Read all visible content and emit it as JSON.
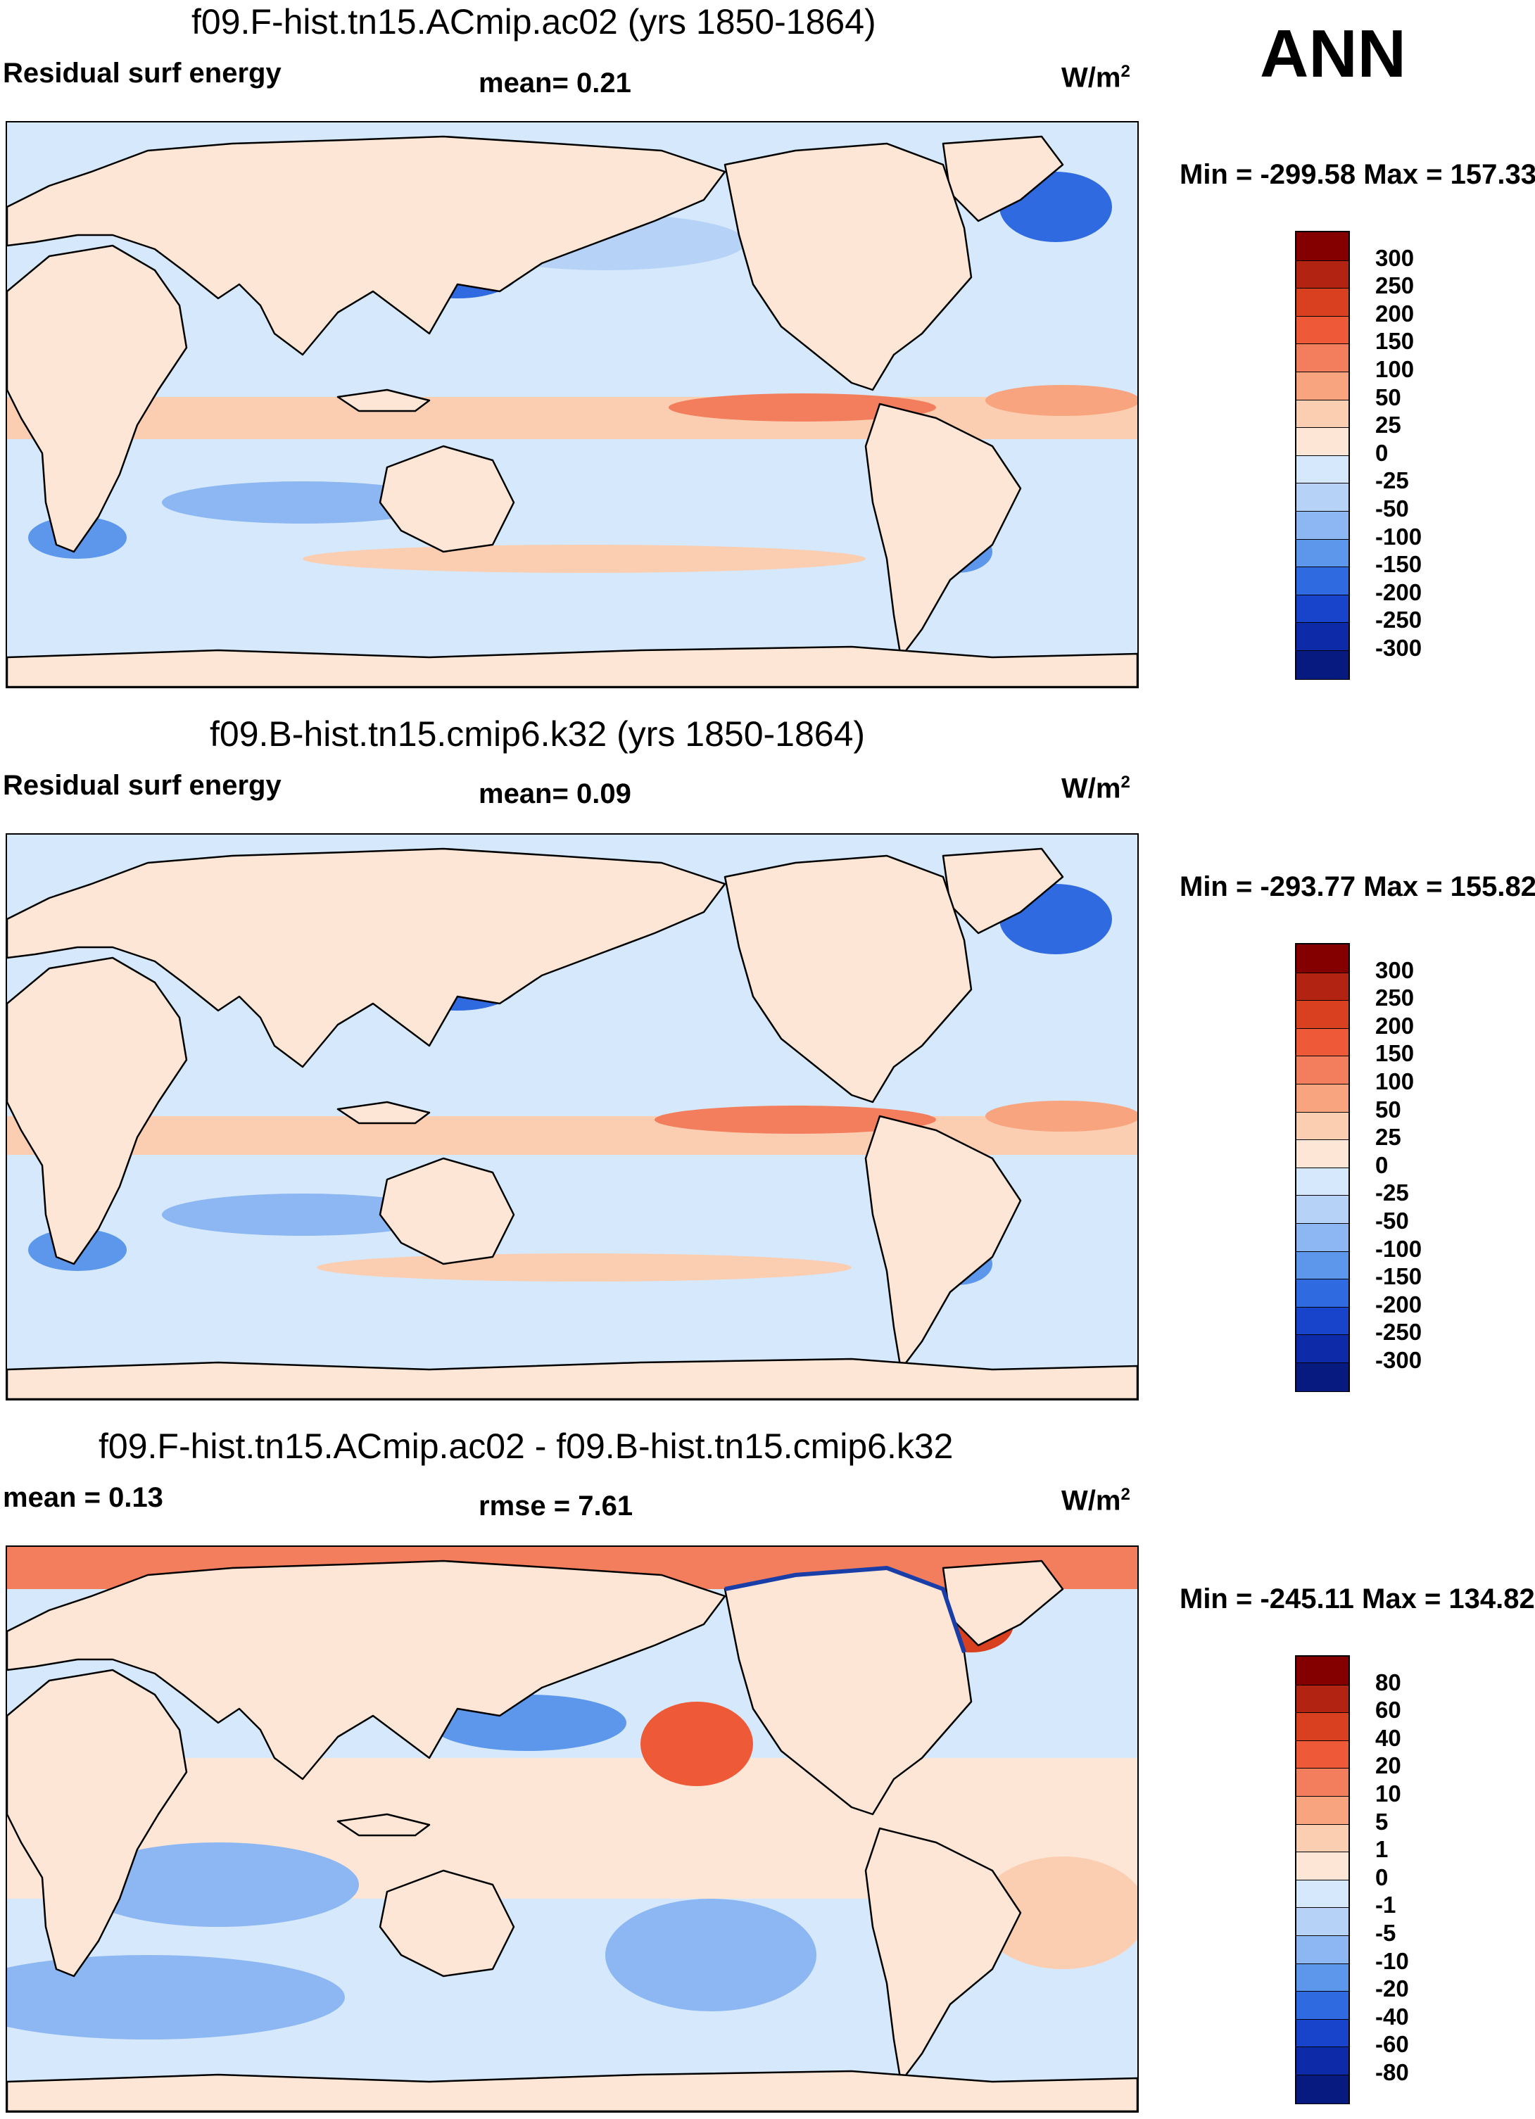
{
  "season": "ANN",
  "colors": {
    "pos_scale": [
      "#fde6d6",
      "#fbcdb1",
      "#f7a47f",
      "#f37e5d",
      "#ee5a38",
      "#d9401f",
      "#b22311",
      "#840000"
    ],
    "neg_scale": [
      "#d6e8fb",
      "#b6d2f6",
      "#8db7f2",
      "#5c97ec",
      "#2f6ae0",
      "#1844cc",
      "#0d2aa8",
      "#061a80"
    ],
    "land": "#fde6d6",
    "coast": "#000000",
    "ocean": "#d6e8fb"
  },
  "panels": [
    {
      "title": "f09.F-hist.tn15.ACmip.ac02 (yrs 1850-1864)",
      "left_label": "Residual surf energy",
      "mid_label": "mean=   0.21",
      "units": "W/m",
      "units_sup": "2",
      "minmax": "Min = -299.58 Max = 157.33",
      "colorbar_labels": [
        "300",
        "250",
        "200",
        "150",
        "100",
        "50",
        "25",
        "0",
        "-25",
        "-50",
        "-100",
        "-150",
        "-200",
        "-250",
        "-300"
      ]
    },
    {
      "title": "f09.B-hist.tn15.cmip6.k32 (yrs 1850-1864)",
      "left_label": "Residual surf energy",
      "mid_label": "mean=   0.09",
      "units": "W/m",
      "units_sup": "2",
      "minmax": "Min = -293.77 Max = 155.82",
      "colorbar_labels": [
        "300",
        "250",
        "200",
        "150",
        "100",
        "50",
        "25",
        "0",
        "-25",
        "-50",
        "-100",
        "-150",
        "-200",
        "-250",
        "-300"
      ]
    },
    {
      "title": "f09.F-hist.tn15.ACmip.ac02 - f09.B-hist.tn15.cmip6.k32",
      "left_label": "mean =   0.13",
      "mid_label": "rmse =   7.61",
      "units": "W/m",
      "units_sup": "2",
      "minmax": "Min = -245.11 Max = 134.82",
      "colorbar_labels": [
        "80",
        "60",
        "40",
        "20",
        "10",
        "5",
        "1",
        "0",
        "-1",
        "-5",
        "-10",
        "-20",
        "-40",
        "-60",
        "-80"
      ]
    }
  ]
}
